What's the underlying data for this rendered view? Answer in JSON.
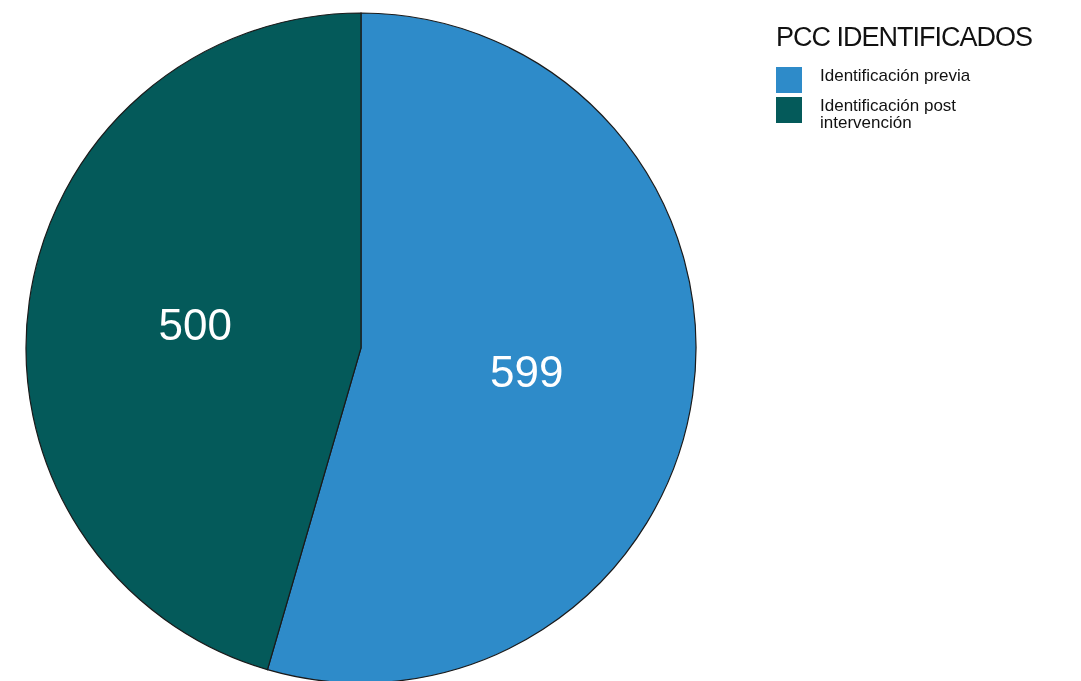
{
  "chart_data": {
    "type": "pie",
    "legend_title": "PCC IDENTIFICADOS",
    "categories": [
      "Identificación previa",
      "Identificación post intervención"
    ],
    "values": [
      599,
      500
    ],
    "colors": [
      "#2e8bc9",
      "#045a5a"
    ],
    "data_labels": true,
    "legend": "top right"
  }
}
